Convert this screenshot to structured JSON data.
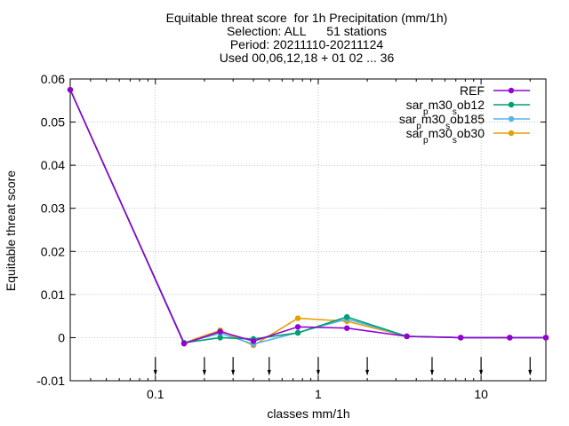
{
  "chart_data": {
    "type": "line",
    "title_lines": [
      "Equitable threat score  for 1h Precipitation (mm/1h)",
      "Selection: ALL      51 stations",
      "Period: 20211110-20211124",
      "Used 00,06,12,18 + 01 02 ... 36"
    ],
    "xlabel": "classes mm/1h",
    "ylabel": "Equitable threat score",
    "x_scale": "log",
    "xlim": [
      0.03,
      25
    ],
    "ylim": [
      -0.01,
      0.06
    ],
    "x_ticks": [
      {
        "value": 0.1,
        "label": "0.1"
      },
      {
        "value": 1,
        "label": "1"
      },
      {
        "value": 10,
        "label": "10"
      }
    ],
    "y_ticks": [
      {
        "value": -0.01,
        "label": "-0.01"
      },
      {
        "value": 0,
        "label": "0"
      },
      {
        "value": 0.01,
        "label": "0.01"
      },
      {
        "value": 0.02,
        "label": "0.02"
      },
      {
        "value": 0.03,
        "label": "0.03"
      },
      {
        "value": 0.04,
        "label": "0.04"
      },
      {
        "value": 0.05,
        "label": "0.05"
      },
      {
        "value": 0.06,
        "label": "0.06"
      }
    ],
    "grid": true,
    "legend_position": "top-right",
    "class_markers": [
      0.1,
      0.2,
      0.3,
      0.5,
      1,
      2,
      5,
      10,
      20
    ],
    "x": [
      0.03,
      0.15,
      0.25,
      0.4,
      0.75,
      1.5,
      3.5,
      7.5,
      15,
      25
    ],
    "series": [
      {
        "name": [
          "sar",
          "p",
          "m30",
          "s",
          "ob30"
        ],
        "legend_order": 3,
        "color": "#e69f00",
        "marker": "circle",
        "values": [
          0.0575,
          -0.0012,
          0.0017,
          -0.0018,
          0.0045,
          0.0038,
          0.0003,
          0.0,
          0.0,
          0.0
        ]
      },
      {
        "name": [
          "sar",
          "p",
          "m30",
          "s",
          "ob185"
        ],
        "legend_order": 2,
        "color": "#56b4e9",
        "marker": "circle",
        "values": [
          0.0575,
          -0.0012,
          0.001,
          -0.0015,
          0.0012,
          0.0043,
          0.0003,
          0.0,
          0.0,
          0.0
        ]
      },
      {
        "name": [
          "sar",
          "p",
          "m30",
          "s",
          "ob12"
        ],
        "legend_order": 1,
        "color": "#009e73",
        "marker": "circle",
        "values": [
          0.0575,
          -0.0012,
          0.0,
          -0.0003,
          0.0011,
          0.0048,
          0.0003,
          0.0,
          0.0,
          0.0
        ]
      },
      {
        "name": [
          "REF"
        ],
        "legend_order": 0,
        "color": "#9400d3",
        "marker": "circle",
        "values": [
          0.0575,
          -0.0014,
          0.0014,
          -0.0008,
          0.0025,
          0.0022,
          0.0003,
          0.0,
          0.0,
          0.0
        ]
      }
    ]
  }
}
